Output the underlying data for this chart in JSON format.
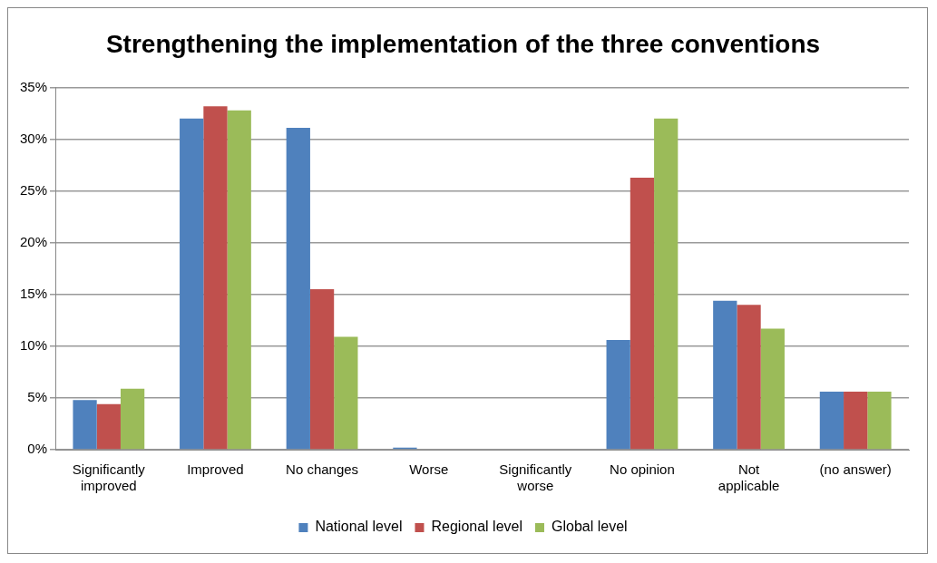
{
  "chart_data": {
    "type": "bar",
    "title": "Strengthening the implementation of the three conventions",
    "categories": [
      "Significantly improved",
      "Improved",
      "No changes",
      "Worse",
      "Significantly worse",
      "No opinion",
      "Not applicable",
      "(no answer)"
    ],
    "series": [
      {
        "name": "National level",
        "color": "#4f81bd",
        "values": [
          4.8,
          32.0,
          31.1,
          0.2,
          0,
          10.6,
          14.4,
          5.6
        ]
      },
      {
        "name": "Regional level",
        "color": "#c0504d",
        "values": [
          4.4,
          33.2,
          15.5,
          0,
          0,
          26.3,
          14.0,
          5.6
        ]
      },
      {
        "name": "Global level",
        "color": "#9bbb59",
        "values": [
          5.9,
          32.8,
          10.9,
          0,
          0,
          32.0,
          11.7,
          5.6
        ]
      }
    ],
    "ylim": [
      0,
      35
    ],
    "yticks": [
      {
        "value": 0,
        "label": "0%"
      },
      {
        "value": 5,
        "label": "5%"
      },
      {
        "value": 10,
        "label": "10%"
      },
      {
        "value": 15,
        "label": "15%"
      },
      {
        "value": 20,
        "label": "20%"
      },
      {
        "value": 25,
        "label": "25%"
      },
      {
        "value": 30,
        "label": "30%"
      },
      {
        "value": 35,
        "label": "35%"
      }
    ],
    "grid": "y",
    "legend": "bottom"
  }
}
